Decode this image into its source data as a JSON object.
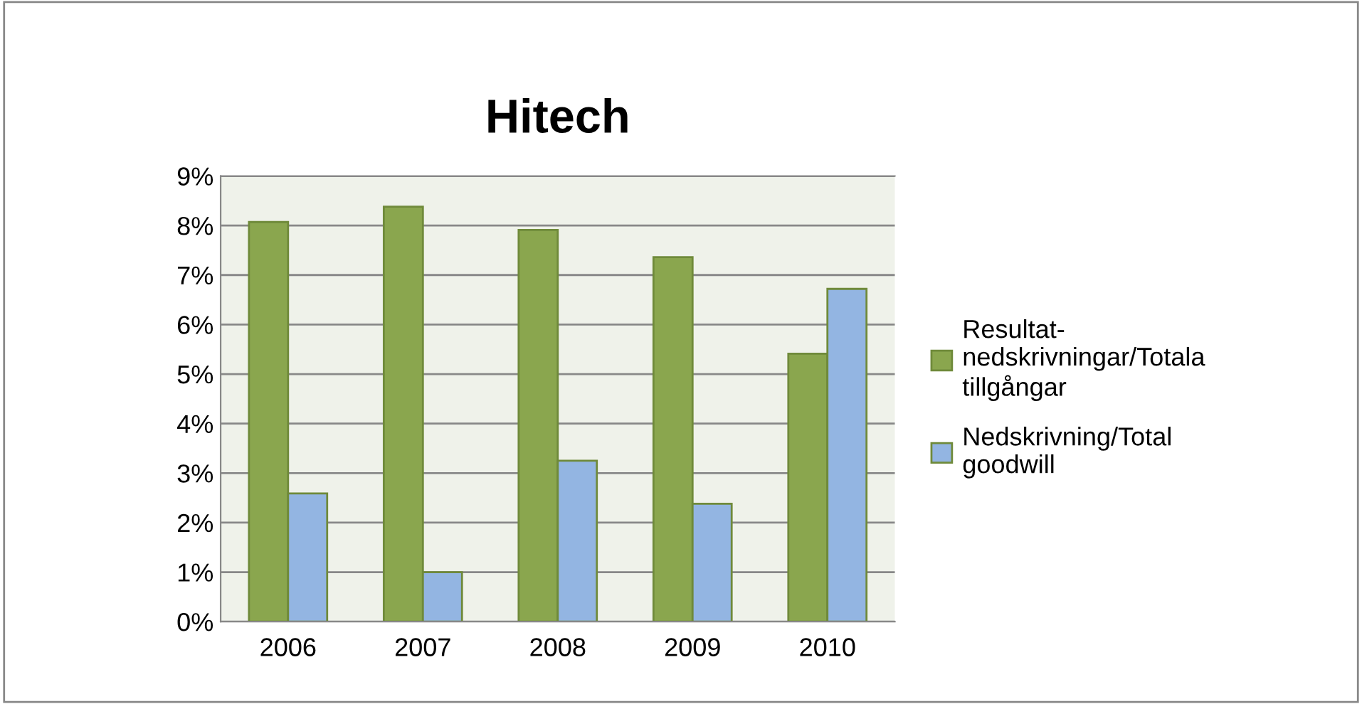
{
  "chart_data": {
    "type": "bar",
    "title": "Hitech",
    "categories": [
      "2006",
      "2007",
      "2008",
      "2009",
      "2010"
    ],
    "series": [
      {
        "name": "Resultat-\nnedskrivningar/Totala\ntillgångar",
        "color": "#8aa64e",
        "values": [
          8.07,
          8.38,
          7.91,
          7.36,
          5.41
        ]
      },
      {
        "name": "Nedskrivning/Total\ngoodwill",
        "color": "#93b5e2",
        "values": [
          2.59,
          1.0,
          3.25,
          2.38,
          6.72
        ]
      }
    ],
    "ylim": [
      0,
      9
    ],
    "yticks": [
      {
        "value": 0,
        "label": "0%"
      },
      {
        "value": 1,
        "label": "1%"
      },
      {
        "value": 2,
        "label": "2%"
      },
      {
        "value": 3,
        "label": "3%"
      },
      {
        "value": 4,
        "label": "4%"
      },
      {
        "value": 5,
        "label": "5%"
      },
      {
        "value": 6,
        "label": "6%"
      },
      {
        "value": 7,
        "label": "7%"
      },
      {
        "value": 8,
        "label": "8%"
      },
      {
        "value": 9,
        "label": "9%"
      }
    ],
    "grid": "y",
    "legend": "right"
  }
}
